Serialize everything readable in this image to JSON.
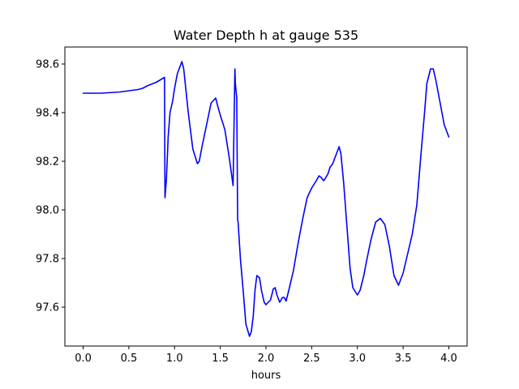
{
  "chart_data": {
    "type": "line",
    "title": "Water Depth h at gauge 535",
    "xlabel": "hours",
    "ylabel": "",
    "xlim": [
      -0.2,
      4.2
    ],
    "ylim": [
      97.44,
      98.67
    ],
    "xticks": [
      0.0,
      0.5,
      1.0,
      1.5,
      2.0,
      2.5,
      3.0,
      3.5,
      4.0
    ],
    "xtick_labels": [
      "0.0",
      "0.5",
      "1.0",
      "1.5",
      "2.0",
      "2.5",
      "3.0",
      "3.5",
      "4.0"
    ],
    "yticks": [
      97.6,
      97.8,
      98.0,
      98.2,
      98.4,
      98.6
    ],
    "ytick_labels": [
      "97.6",
      "97.8",
      "98.0",
      "98.2",
      "98.4",
      "98.6"
    ],
    "grid": false,
    "series": [
      {
        "color": "#0000ff",
        "x": [
          0.0,
          0.2,
          0.4,
          0.6,
          0.65,
          0.7,
          0.8,
          0.89,
          0.895,
          0.91,
          0.93,
          0.95,
          0.98,
          1.0,
          1.03,
          1.06,
          1.08,
          1.1,
          1.15,
          1.2,
          1.25,
          1.27,
          1.3,
          1.35,
          1.4,
          1.45,
          1.47,
          1.5,
          1.55,
          1.6,
          1.64,
          1.66,
          1.665,
          1.68,
          1.69,
          1.695,
          1.72,
          1.75,
          1.78,
          1.82,
          1.84,
          1.86,
          1.88,
          1.9,
          1.93,
          1.95,
          1.98,
          2.0,
          2.05,
          2.08,
          2.1,
          2.12,
          2.15,
          2.18,
          2.2,
          2.22,
          2.25,
          2.3,
          2.35,
          2.4,
          2.45,
          2.5,
          2.55,
          2.58,
          2.6,
          2.63,
          2.65,
          2.68,
          2.7,
          2.73,
          2.76,
          2.8,
          2.82,
          2.85,
          2.88,
          2.92,
          2.95,
          3.0,
          3.03,
          3.07,
          3.1,
          3.15,
          3.2,
          3.25,
          3.3,
          3.35,
          3.4,
          3.45,
          3.5,
          3.55,
          3.6,
          3.65,
          3.7,
          3.73,
          3.76,
          3.8,
          3.83,
          3.86,
          3.9,
          3.95,
          4.0
        ],
        "y": [
          98.48,
          98.48,
          98.485,
          98.495,
          98.5,
          98.51,
          98.525,
          98.545,
          98.05,
          98.12,
          98.3,
          98.4,
          98.45,
          98.5,
          98.56,
          98.59,
          98.61,
          98.58,
          98.4,
          98.25,
          98.19,
          98.2,
          98.26,
          98.35,
          98.44,
          98.46,
          98.43,
          98.39,
          98.33,
          98.21,
          98.1,
          98.58,
          98.52,
          98.46,
          97.96,
          97.95,
          97.8,
          97.67,
          97.53,
          97.48,
          97.5,
          97.56,
          97.67,
          97.73,
          97.72,
          97.67,
          97.62,
          97.61,
          97.63,
          97.675,
          97.68,
          97.65,
          97.62,
          97.64,
          97.64,
          97.625,
          97.67,
          97.75,
          97.86,
          97.96,
          98.05,
          98.09,
          98.12,
          98.14,
          98.135,
          98.12,
          98.13,
          98.15,
          98.175,
          98.19,
          98.22,
          98.26,
          98.23,
          98.11,
          97.96,
          97.76,
          97.68,
          97.65,
          97.67,
          97.73,
          97.79,
          97.88,
          97.95,
          97.965,
          97.94,
          97.85,
          97.73,
          97.69,
          97.74,
          97.82,
          97.9,
          98.02,
          98.25,
          98.38,
          98.52,
          98.58,
          98.58,
          98.53,
          98.45,
          98.35,
          98.3
        ]
      }
    ]
  }
}
